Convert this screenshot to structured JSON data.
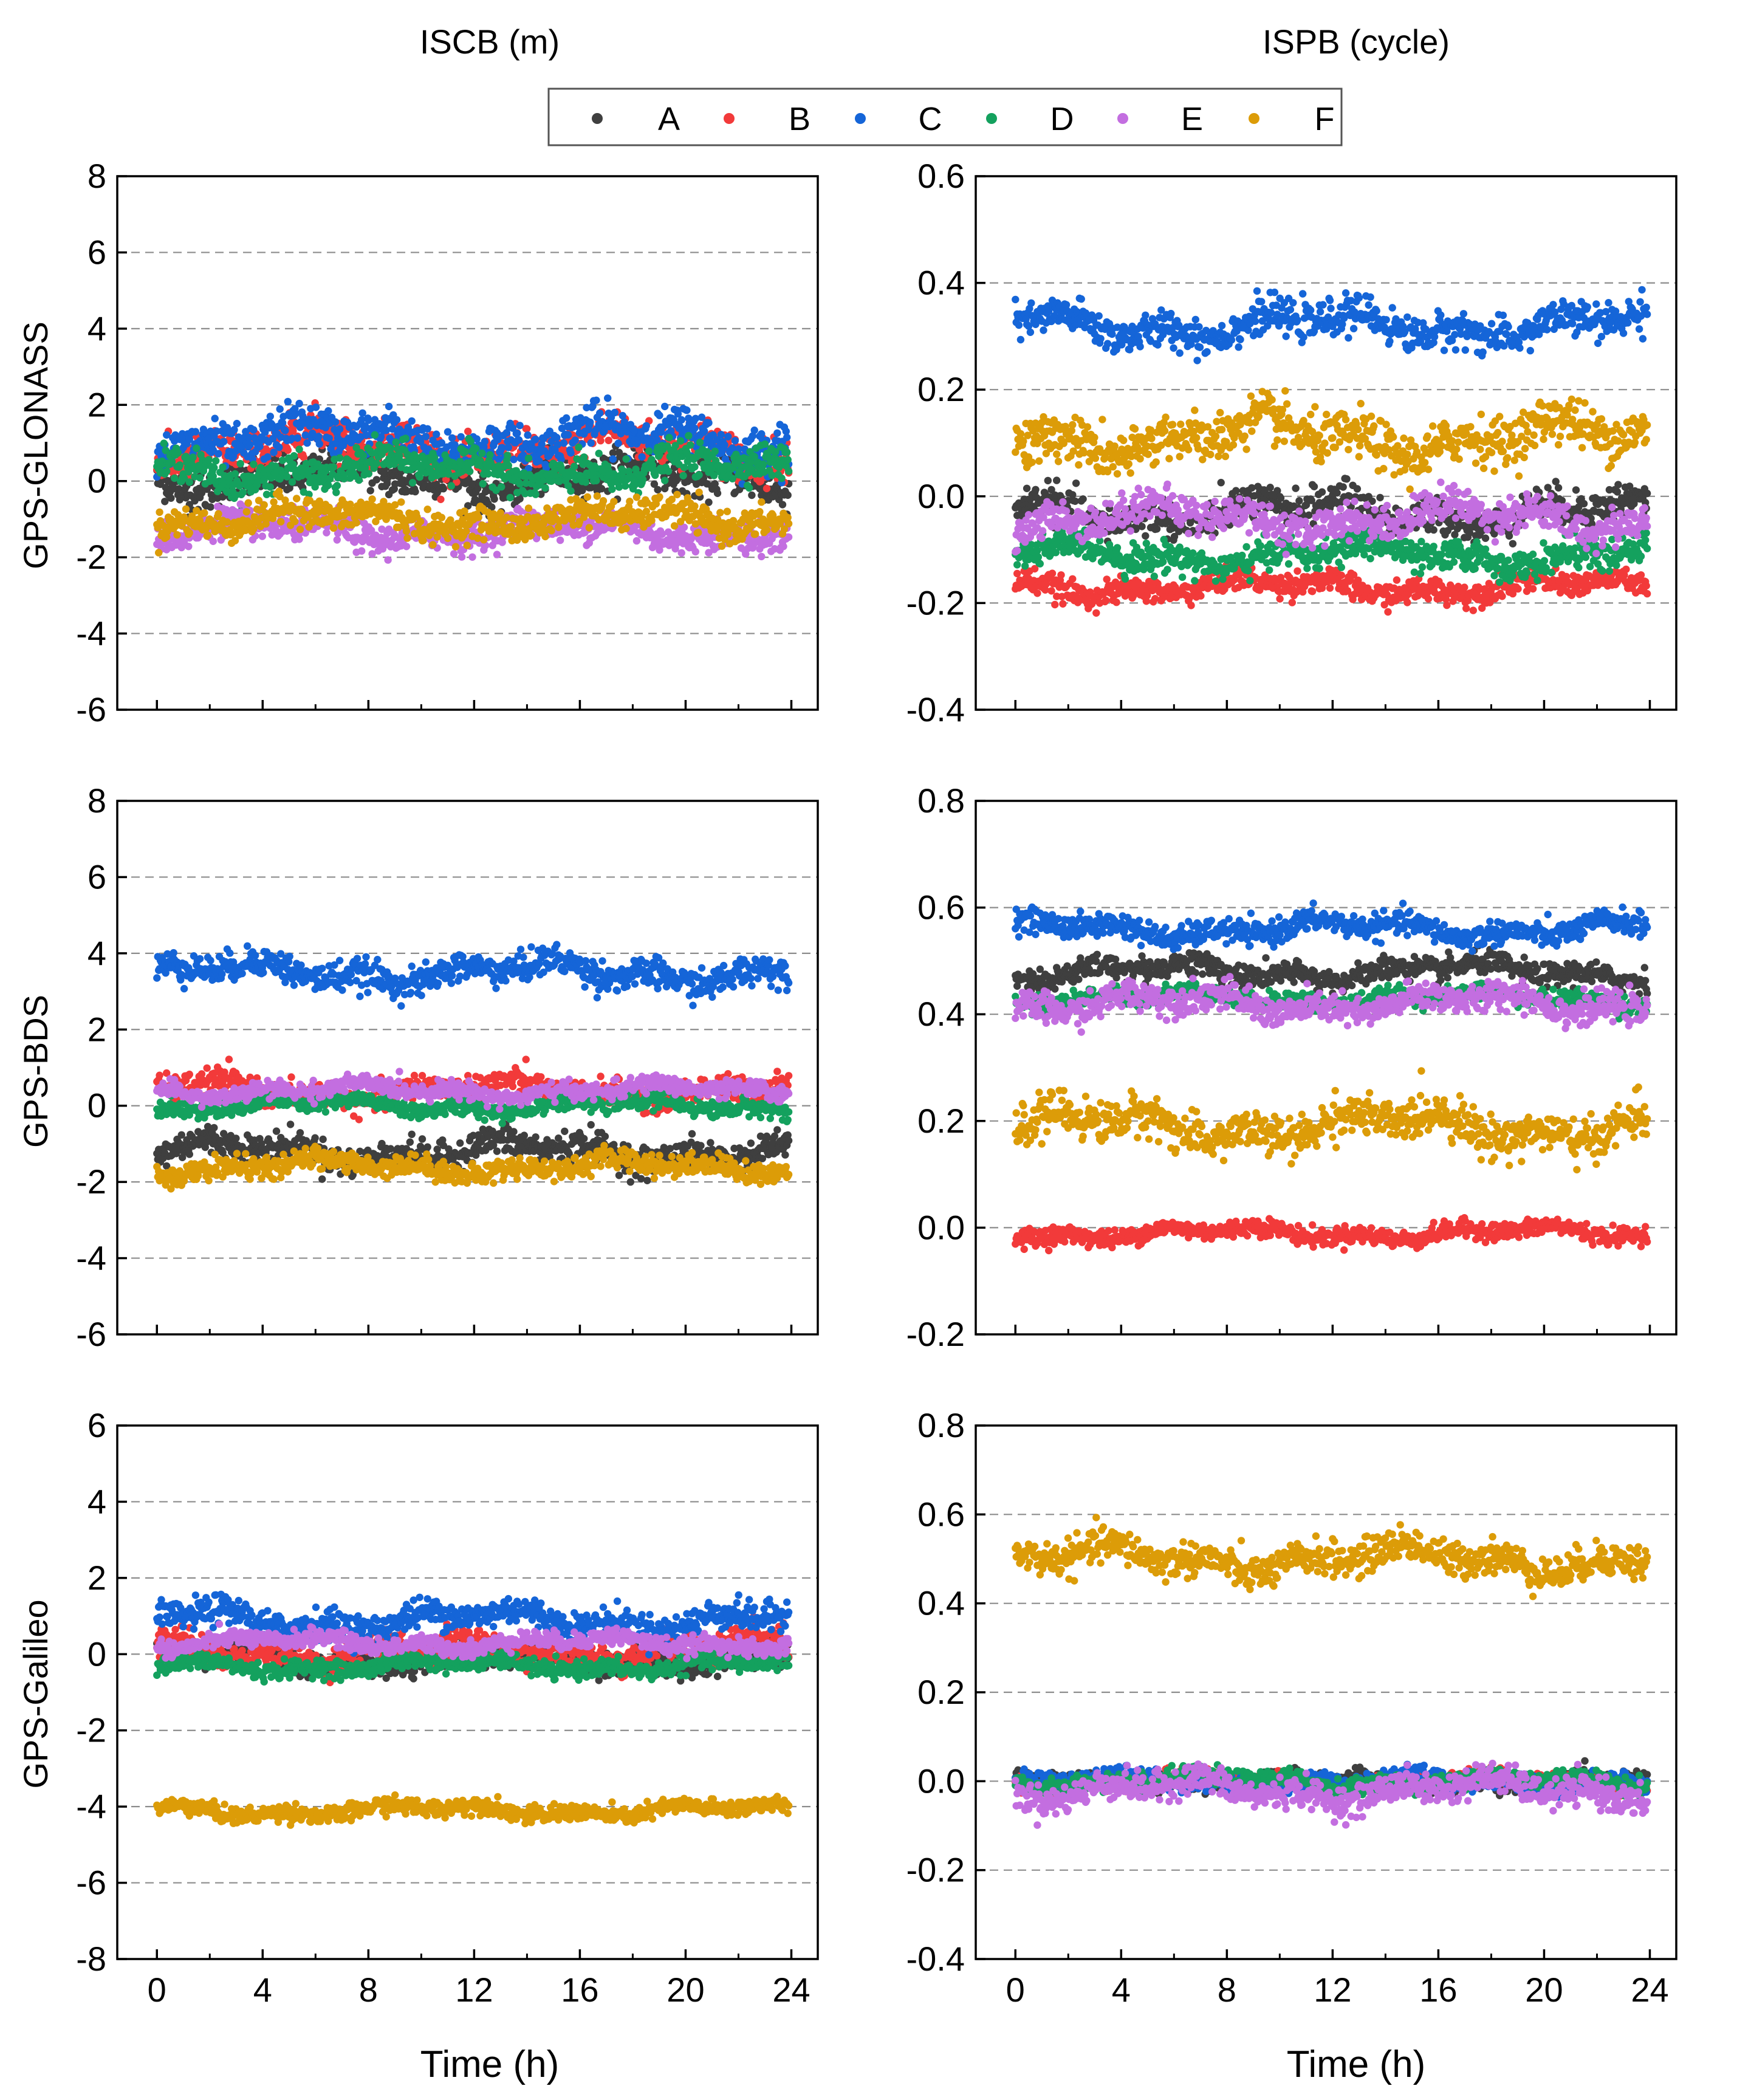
{
  "column_titles": [
    "ISCB (m)",
    "ISPB (cycle)"
  ],
  "row_labels": [
    "GPS-GLONASS",
    "GPS-BDS",
    "GPS-Galileo"
  ],
  "legend": [
    {
      "label": "A",
      "color": "#3f3f3f"
    },
    {
      "label": "B",
      "color": "#f23a3a"
    },
    {
      "label": "C",
      "color": "#1565d8"
    },
    {
      "label": "D",
      "color": "#14a15e"
    },
    {
      "label": "E",
      "color": "#c36ee0"
    },
    {
      "label": "F",
      "color": "#dc9c08"
    }
  ],
  "chart_data": [
    {
      "id": "glonass-iscb",
      "type": "scatter",
      "row": 0,
      "col": 0,
      "title": "ISCB (m)",
      "ylabel": "GPS-GLONASS",
      "xlabel": "Time (h)",
      "xlim": [
        -1.5,
        25
      ],
      "ylim": [
        -6,
        8
      ],
      "xticks": [
        0,
        4,
        8,
        12,
        16,
        20,
        24
      ],
      "yticks": [
        -6,
        -4,
        -2,
        0,
        2,
        4,
        6,
        8
      ],
      "ytick_labels": [
        "-6",
        "-4",
        "-2",
        "0",
        "2",
        "4",
        "6",
        "8"
      ],
      "grid_y": [
        -4,
        -2,
        0,
        2,
        4,
        6
      ],
      "x_range": [
        0,
        23.9
      ],
      "series": [
        {
          "name": "A",
          "mean": 0.1,
          "noise": 0.45
        },
        {
          "name": "B",
          "mean": 0.9,
          "noise": 0.5
        },
        {
          "name": "C",
          "mean": 1.1,
          "noise": 0.5
        },
        {
          "name": "D",
          "mean": 0.3,
          "noise": 0.4
        },
        {
          "name": "E",
          "mean": -1.3,
          "noise": 0.35
        },
        {
          "name": "F",
          "mean": -1.0,
          "noise": 0.35
        }
      ]
    },
    {
      "id": "glonass-ispb",
      "type": "scatter",
      "row": 0,
      "col": 1,
      "title": "ISPB (cycle)",
      "ylabel": "",
      "xlabel": "Time (h)",
      "xlim": [
        -1.5,
        25
      ],
      "ylim": [
        -0.4,
        0.6
      ],
      "xticks": [
        0,
        4,
        8,
        12,
        16,
        20,
        24
      ],
      "yticks": [
        -0.4,
        -0.2,
        0.0,
        0.2,
        0.4,
        0.6
      ],
      "ytick_labels": [
        "-0.4",
        "-0.2",
        "0.0",
        "0.2",
        "0.4",
        "0.6"
      ],
      "grid_y": [
        -0.2,
        0.0,
        0.2,
        0.4
      ],
      "x_range": [
        0,
        23.9
      ],
      "series": [
        {
          "name": "A",
          "mean": -0.03,
          "noise": 0.03
        },
        {
          "name": "B",
          "mean": -0.17,
          "noise": 0.02
        },
        {
          "name": "C",
          "mean": 0.32,
          "noise": 0.03
        },
        {
          "name": "D",
          "mean": -0.11,
          "noise": 0.025
        },
        {
          "name": "E",
          "mean": -0.04,
          "noise": 0.03
        },
        {
          "name": "F",
          "mean": 0.11,
          "noise": 0.04
        }
      ]
    },
    {
      "id": "bds-iscb",
      "type": "scatter",
      "row": 1,
      "col": 0,
      "title": "",
      "ylabel": "GPS-BDS",
      "xlabel": "Time (h)",
      "xlim": [
        -1.5,
        25
      ],
      "ylim": [
        -6,
        8
      ],
      "xticks": [
        0,
        4,
        8,
        12,
        16,
        20,
        24
      ],
      "yticks": [
        -6,
        -4,
        -2,
        0,
        2,
        4,
        6,
        8
      ],
      "ytick_labels": [
        "-6",
        "-4",
        "-2",
        "0",
        "2",
        "4",
        "6",
        "8"
      ],
      "grid_y": [
        -4,
        -2,
        0,
        2,
        4,
        6
      ],
      "x_range": [
        0,
        23.9
      ],
      "series": [
        {
          "name": "A",
          "mean": -1.2,
          "noise": 0.35
        },
        {
          "name": "B",
          "mean": 0.4,
          "noise": 0.3
        },
        {
          "name": "C",
          "mean": 3.5,
          "noise": 0.35
        },
        {
          "name": "D",
          "mean": 0.0,
          "noise": 0.2
        },
        {
          "name": "E",
          "mean": 0.4,
          "noise": 0.2
        },
        {
          "name": "F",
          "mean": -1.6,
          "noise": 0.25
        }
      ]
    },
    {
      "id": "bds-ispb",
      "type": "scatter",
      "row": 1,
      "col": 1,
      "title": "",
      "ylabel": "",
      "xlabel": "Time (h)",
      "xlim": [
        -1.5,
        25
      ],
      "ylim": [
        -0.2,
        0.8
      ],
      "xticks": [
        0,
        4,
        8,
        12,
        16,
        20,
        24
      ],
      "yticks": [
        -0.2,
        0.0,
        0.2,
        0.4,
        0.6,
        0.8
      ],
      "ytick_labels": [
        "-0.2",
        "0.0",
        "0.2",
        "0.4",
        "0.6",
        "0.8"
      ],
      "grid_y": [
        0.0,
        0.2,
        0.4,
        0.6
      ],
      "x_range": [
        0,
        23.9
      ],
      "series": [
        {
          "name": "A",
          "mean": 0.48,
          "noise": 0.02
        },
        {
          "name": "B",
          "mean": -0.01,
          "noise": 0.015
        },
        {
          "name": "C",
          "mean": 0.56,
          "noise": 0.02
        },
        {
          "name": "D",
          "mean": 0.43,
          "noise": 0.015
        },
        {
          "name": "E",
          "mean": 0.42,
          "noise": 0.025
        },
        {
          "name": "F",
          "mean": 0.19,
          "noise": 0.035
        }
      ]
    },
    {
      "id": "galileo-iscb",
      "type": "scatter",
      "row": 2,
      "col": 0,
      "title": "",
      "ylabel": "GPS-Galileo",
      "xlabel": "Time (h)",
      "xlim": [
        -1.5,
        25
      ],
      "ylim": [
        -8,
        6
      ],
      "xticks": [
        0,
        4,
        8,
        12,
        16,
        20,
        24
      ],
      "yticks": [
        -8,
        -6,
        -4,
        -2,
        0,
        2,
        4,
        6
      ],
      "ytick_labels": [
        "-8",
        "-6",
        "-4",
        "-2",
        "0",
        "2",
        "4",
        "6"
      ],
      "grid_y": [
        -6,
        -4,
        -2,
        0,
        2,
        4
      ],
      "x_range": [
        0,
        23.9
      ],
      "series": [
        {
          "name": "A",
          "mean": -0.1,
          "noise": 0.3
        },
        {
          "name": "B",
          "mean": 0.1,
          "noise": 0.35
        },
        {
          "name": "C",
          "mean": 0.9,
          "noise": 0.35
        },
        {
          "name": "D",
          "mean": -0.3,
          "noise": 0.2
        },
        {
          "name": "E",
          "mean": 0.3,
          "noise": 0.2
        },
        {
          "name": "F",
          "mean": -4.1,
          "noise": 0.2
        }
      ]
    },
    {
      "id": "galileo-ispb",
      "type": "scatter",
      "row": 2,
      "col": 1,
      "title": "",
      "ylabel": "",
      "xlabel": "Time (h)",
      "xlim": [
        -1.5,
        25
      ],
      "ylim": [
        -0.4,
        0.8
      ],
      "xticks": [
        0,
        4,
        8,
        12,
        16,
        20,
        24
      ],
      "yticks": [
        -0.4,
        -0.2,
        0.0,
        0.2,
        0.4,
        0.6,
        0.8
      ],
      "ytick_labels": [
        "-0.4",
        "-0.2",
        "0.0",
        "0.2",
        "0.4",
        "0.6",
        "0.8"
      ],
      "grid_y": [
        -0.2,
        0.0,
        0.2,
        0.4,
        0.6
      ],
      "x_range": [
        0,
        23.9
      ],
      "series": [
        {
          "name": "A",
          "mean": 0.0,
          "noise": 0.015
        },
        {
          "name": "B",
          "mean": 0.0,
          "noise": 0.015
        },
        {
          "name": "C",
          "mean": 0.0,
          "noise": 0.018
        },
        {
          "name": "D",
          "mean": 0.0,
          "noise": 0.018
        },
        {
          "name": "E",
          "mean": -0.02,
          "noise": 0.03
        },
        {
          "name": "F",
          "mean": 0.5,
          "noise": 0.035
        }
      ]
    }
  ]
}
